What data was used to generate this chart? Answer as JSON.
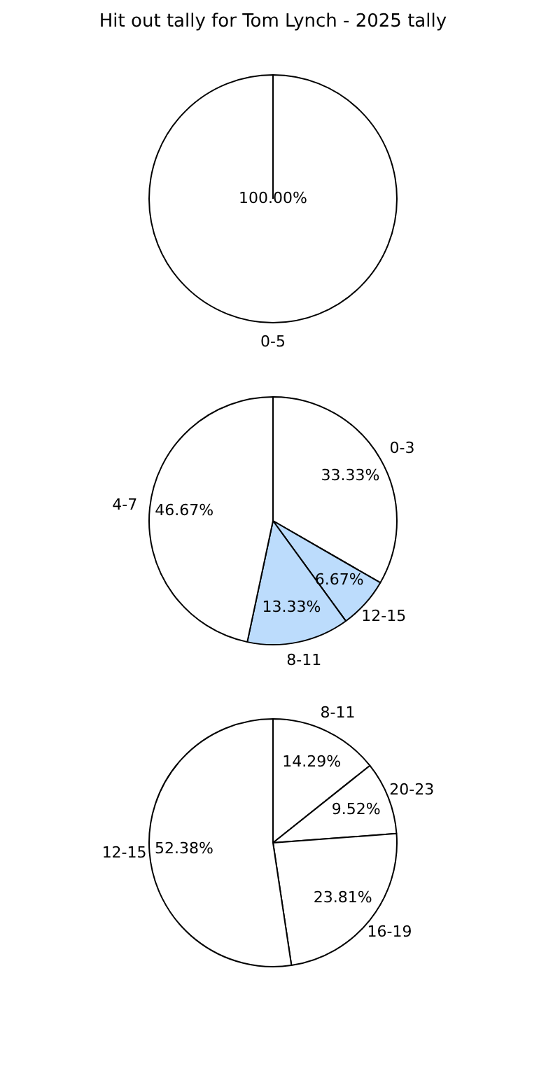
{
  "chart_data": [
    {
      "type": "pie",
      "title": "Hit out tally for Tom Lynch - 2025 tally",
      "categories": [
        "0-5"
      ],
      "values": [
        100
      ],
      "colors": [
        "#ffffff"
      ],
      "value_labels": [
        "100.00%"
      ]
    },
    {
      "type": "pie",
      "categories": [
        "0-3",
        "12-15",
        "8-11",
        "4-7"
      ],
      "values": [
        33.33,
        6.67,
        13.33,
        46.67
      ],
      "colors": [
        "#ffffff",
        "#bcdcfc",
        "#bcdcfc",
        "#ffffff"
      ],
      "value_labels": [
        "33.33%",
        "6.67%",
        "13.33%",
        "46.67%"
      ]
    },
    {
      "type": "pie",
      "categories": [
        "8-11",
        "20-23",
        "16-19",
        "12-15"
      ],
      "values": [
        14.29,
        9.52,
        23.81,
        52.38
      ],
      "colors": [
        "#ffffff",
        "#ffffff",
        "#ffffff",
        "#ffffff"
      ],
      "value_labels": [
        "14.29%",
        "9.52%",
        "23.81%",
        "52.38%"
      ]
    }
  ]
}
